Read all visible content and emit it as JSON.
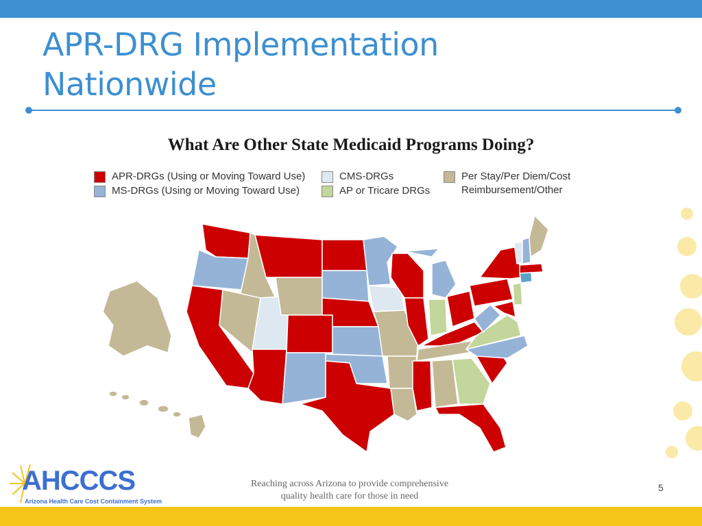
{
  "slide": {
    "title_line1": "APR-DRG Implementation",
    "title_line2": "Nationwide",
    "page_number": "5"
  },
  "map": {
    "subtitle": "What Are Other State Medicaid Programs Doing?",
    "legend": [
      {
        "label": "APR-DRGs (Using or Moving Toward Use)",
        "color": "#cc0000"
      },
      {
        "label": "MS-DRGs  (Using or Moving Toward Use)",
        "color": "#95b3d7"
      },
      {
        "label": "CMS-DRGs",
        "color": "#dde8f0"
      },
      {
        "label": "AP or Tricare DRGs",
        "color": "#c3d69b"
      },
      {
        "label": "Per Stay/Per Diem/Cost",
        "label2": "Reimbursement/Other",
        "color": "#c4b996"
      }
    ]
  },
  "footer": {
    "logo": "AHCCCS",
    "logo_sub": "Arizona Health Care Cost Containment System",
    "tagline_line1": "Reaching across Arizona to provide comprehensive",
    "tagline_line2": "quality health care for those in need",
    "band_color": "#f5c518"
  }
}
